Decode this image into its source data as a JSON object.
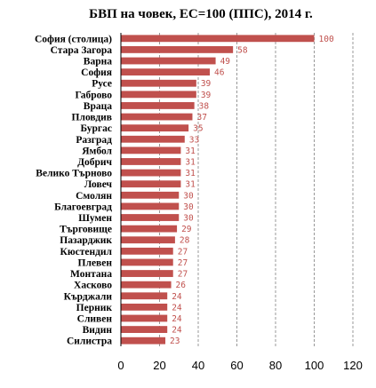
{
  "chart_data": {
    "type": "bar",
    "orientation": "horizontal",
    "title": "БВП на човек, ЕС=100 (ППС), 2014 г.",
    "categories": [
      "София (столица)",
      "Стара Загора",
      "Варна",
      "София",
      "Русе",
      "Габрово",
      "Враца",
      "Пловдив",
      "Бургас",
      "Разград",
      "Ямбол",
      "Добрич",
      "Велико Търново",
      "Ловеч",
      "Смолян",
      "Благоевград",
      "Шумен",
      "Търговище",
      "Пазарджик",
      "Кюстендил",
      "Плевен",
      "Монтана",
      "Хасково",
      "Кърджали",
      "Перник",
      "Сливен",
      "Видин",
      "Силистра"
    ],
    "values": [
      100,
      58,
      49,
      46,
      39,
      39,
      38,
      37,
      35,
      33,
      31,
      31,
      31,
      31,
      30,
      30,
      30,
      29,
      28,
      27,
      27,
      27,
      26,
      24,
      24,
      24,
      24,
      23
    ],
    "xlim": [
      0,
      120
    ],
    "xticks": [
      "0",
      "20",
      "40",
      "60",
      "80",
      "100",
      "120"
    ],
    "grid": "vertical dashed",
    "bar_color": "#c0504d",
    "label_color": "#c0504d"
  }
}
